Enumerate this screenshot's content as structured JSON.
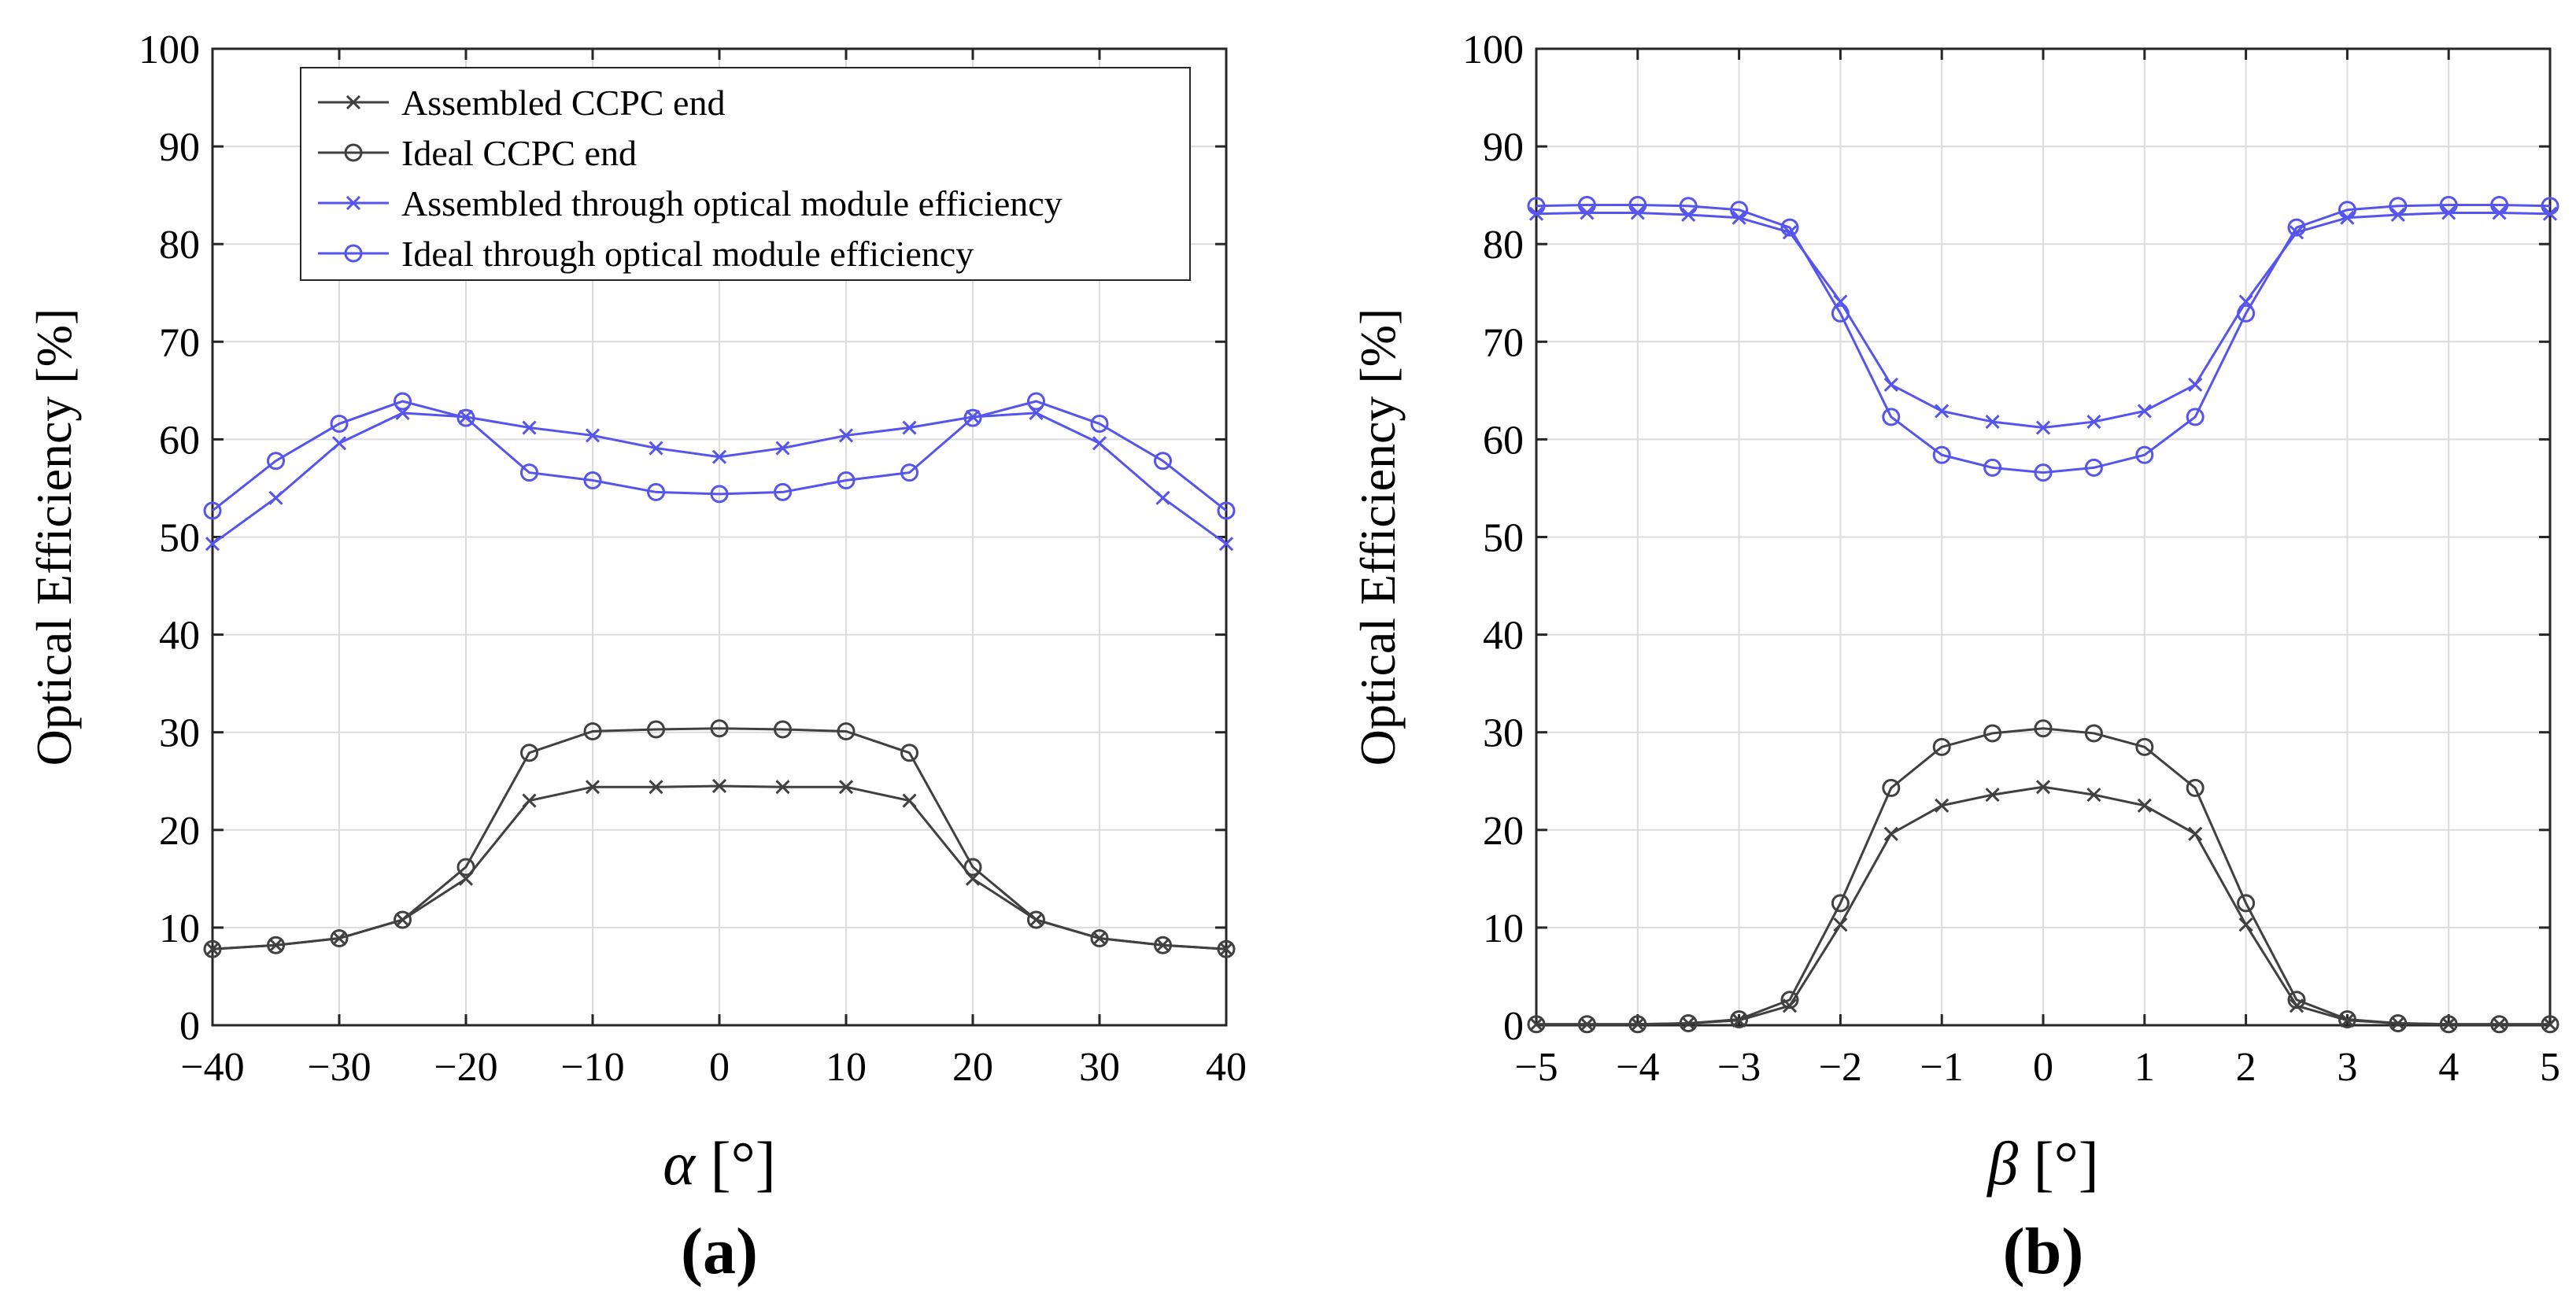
{
  "chart_data": [
    {
      "type": "line",
      "panel_label": "(a)",
      "xlabel_symbol": "α",
      "xlabel_unit": "[°]",
      "ylabel": "Optical Efficiency [%]",
      "xlim": [
        -40,
        40
      ],
      "ylim": [
        0,
        100
      ],
      "xticks": [
        -40,
        -30,
        -20,
        -10,
        0,
        10,
        20,
        30,
        40
      ],
      "xtick_labels": [
        "−40",
        "−30",
        "−20",
        "−10",
        "0",
        "10",
        "20",
        "30",
        "40"
      ],
      "yticks": [
        0,
        10,
        20,
        30,
        40,
        50,
        60,
        70,
        80,
        90,
        100
      ],
      "ytick_labels": [
        "0",
        "10",
        "20",
        "30",
        "40",
        "50",
        "60",
        "70",
        "80",
        "90",
        "100"
      ],
      "grid": true,
      "legend_position": "top-left",
      "x": [
        -40,
        -35,
        -30,
        -25,
        -20,
        -15,
        -10,
        -5,
        0,
        5,
        10,
        15,
        20,
        25,
        30,
        35,
        40
      ],
      "series": [
        {
          "name": "Assembled CCPC end",
          "color": "#404040",
          "marker": "x",
          "values": [
            7.8,
            8.2,
            8.9,
            10.8,
            15.0,
            23.0,
            24.4,
            24.4,
            24.5,
            24.4,
            24.4,
            23.0,
            15.0,
            10.8,
            8.9,
            8.2,
            7.8
          ]
        },
        {
          "name": "Ideal CCPC end",
          "color": "#404040",
          "marker": "o",
          "values": [
            7.8,
            8.2,
            8.9,
            10.8,
            16.2,
            27.9,
            30.1,
            30.3,
            30.4,
            30.3,
            30.1,
            27.9,
            16.2,
            10.8,
            8.9,
            8.2,
            7.8
          ]
        },
        {
          "name": "Assembled through optical module efficiency",
          "color": "#5555ee",
          "marker": "x",
          "values": [
            49.3,
            54.0,
            59.6,
            62.7,
            62.3,
            61.2,
            60.4,
            59.1,
            58.2,
            59.1,
            60.4,
            61.2,
            62.3,
            62.7,
            59.6,
            54.0,
            49.3
          ]
        },
        {
          "name": "Ideal through optical module efficiency",
          "color": "#5555ee",
          "marker": "o",
          "values": [
            52.7,
            57.8,
            61.6,
            63.9,
            62.2,
            56.6,
            55.8,
            54.6,
            54.4,
            54.6,
            55.8,
            56.6,
            62.2,
            63.9,
            61.6,
            57.8,
            52.7
          ]
        }
      ]
    },
    {
      "type": "line",
      "panel_label": "(b)",
      "xlabel_symbol": "β",
      "xlabel_unit": "[°]",
      "ylabel": "Optical Efficiency [%]",
      "xlim": [
        -5,
        5
      ],
      "ylim": [
        0,
        100
      ],
      "xticks": [
        -5,
        -4,
        -3,
        -2,
        -1,
        0,
        1,
        2,
        3,
        4,
        5
      ],
      "xtick_labels": [
        "−5",
        "−4",
        "−3",
        "−2",
        "−1",
        "0",
        "1",
        "2",
        "3",
        "4",
        "5"
      ],
      "yticks": [
        0,
        10,
        20,
        30,
        40,
        50,
        60,
        70,
        80,
        90,
        100
      ],
      "ytick_labels": [
        "0",
        "10",
        "20",
        "30",
        "40",
        "50",
        "60",
        "70",
        "80",
        "90",
        "100"
      ],
      "grid": true,
      "legend_position": "none",
      "x": [
        -5,
        -4.5,
        -4,
        -3.5,
        -3,
        -2.5,
        -2,
        -1.5,
        -1,
        -0.5,
        0,
        0.5,
        1,
        1.5,
        2,
        2.5,
        3,
        3.5,
        4,
        4.5,
        5
      ],
      "series": [
        {
          "name": "Assembled CCPC end",
          "color": "#404040",
          "marker": "x",
          "values": [
            0.1,
            0.1,
            0.1,
            0.2,
            0.5,
            2.0,
            10.3,
            19.6,
            22.5,
            23.6,
            24.4,
            23.6,
            22.5,
            19.6,
            10.3,
            2.0,
            0.5,
            0.2,
            0.1,
            0.1,
            0.1
          ]
        },
        {
          "name": "Ideal CCPC end",
          "color": "#404040",
          "marker": "o",
          "values": [
            0.1,
            0.1,
            0.1,
            0.2,
            0.6,
            2.6,
            12.5,
            24.3,
            28.5,
            29.9,
            30.4,
            29.9,
            28.5,
            24.3,
            12.5,
            2.6,
            0.6,
            0.2,
            0.1,
            0.1,
            0.1
          ]
        },
        {
          "name": "Assembled through optical module efficiency",
          "color": "#5555ee",
          "marker": "x",
          "values": [
            83.1,
            83.2,
            83.2,
            83.0,
            82.7,
            81.2,
            74.1,
            65.6,
            62.9,
            61.8,
            61.2,
            61.8,
            62.9,
            65.6,
            74.1,
            81.2,
            82.7,
            83.0,
            83.2,
            83.2,
            83.1
          ]
        },
        {
          "name": "Ideal through optical module efficiency",
          "color": "#5555ee",
          "marker": "o",
          "values": [
            83.9,
            84.0,
            84.0,
            83.9,
            83.5,
            81.7,
            72.9,
            62.3,
            58.4,
            57.1,
            56.6,
            57.1,
            58.4,
            62.3,
            72.9,
            81.7,
            83.5,
            83.9,
            84.0,
            84.0,
            83.9
          ]
        }
      ]
    }
  ]
}
